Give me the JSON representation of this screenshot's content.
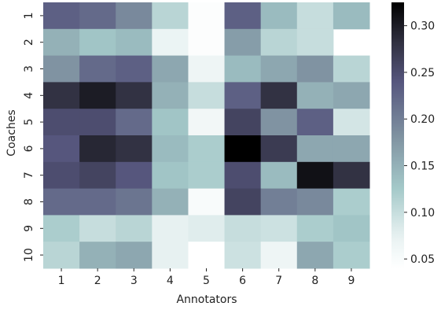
{
  "chart_data": {
    "type": "heatmap",
    "title": "",
    "xlabel": "Annotators",
    "ylabel": "Coaches",
    "x_categories": [
      "1",
      "2",
      "3",
      "4",
      "5",
      "6",
      "7",
      "8",
      "9"
    ],
    "y_categories": [
      "1",
      "2",
      "3",
      "4",
      "5",
      "6",
      "7",
      "8",
      "9",
      "10"
    ],
    "colormap": "bone_r",
    "color_range": [
      0.04,
      0.325
    ],
    "colorbar_ticks": [
      "0.05",
      "0.10",
      "0.15",
      "0.20",
      "0.25",
      "0.30"
    ],
    "values": [
      [
        0.23,
        0.22,
        0.19,
        0.11,
        0.045,
        0.23,
        0.14,
        0.1,
        0.14
      ],
      [
        0.15,
        0.13,
        0.14,
        0.07,
        0.045,
        0.17,
        0.11,
        0.1,
        null
      ],
      [
        0.18,
        0.22,
        0.23,
        0.16,
        0.065,
        0.14,
        0.16,
        0.18,
        0.11
      ],
      [
        0.28,
        0.3,
        0.28,
        0.15,
        0.1,
        0.23,
        0.28,
        0.15,
        0.16
      ],
      [
        0.25,
        0.25,
        0.22,
        0.13,
        0.06,
        0.26,
        0.18,
        0.23,
        0.09
      ],
      [
        0.24,
        0.29,
        0.28,
        0.14,
        0.12,
        0.325,
        0.27,
        0.16,
        0.16
      ],
      [
        0.25,
        0.26,
        0.24,
        0.13,
        0.12,
        0.25,
        0.14,
        0.31,
        0.28
      ],
      [
        0.22,
        0.22,
        0.21,
        0.15,
        0.05,
        0.26,
        0.2,
        0.19,
        0.12
      ],
      [
        0.12,
        0.1,
        0.11,
        0.075,
        0.08,
        0.1,
        0.095,
        0.12,
        0.13
      ],
      [
        0.11,
        0.15,
        0.16,
        0.075,
        0.04,
        0.095,
        0.065,
        0.16,
        0.12
      ]
    ]
  }
}
